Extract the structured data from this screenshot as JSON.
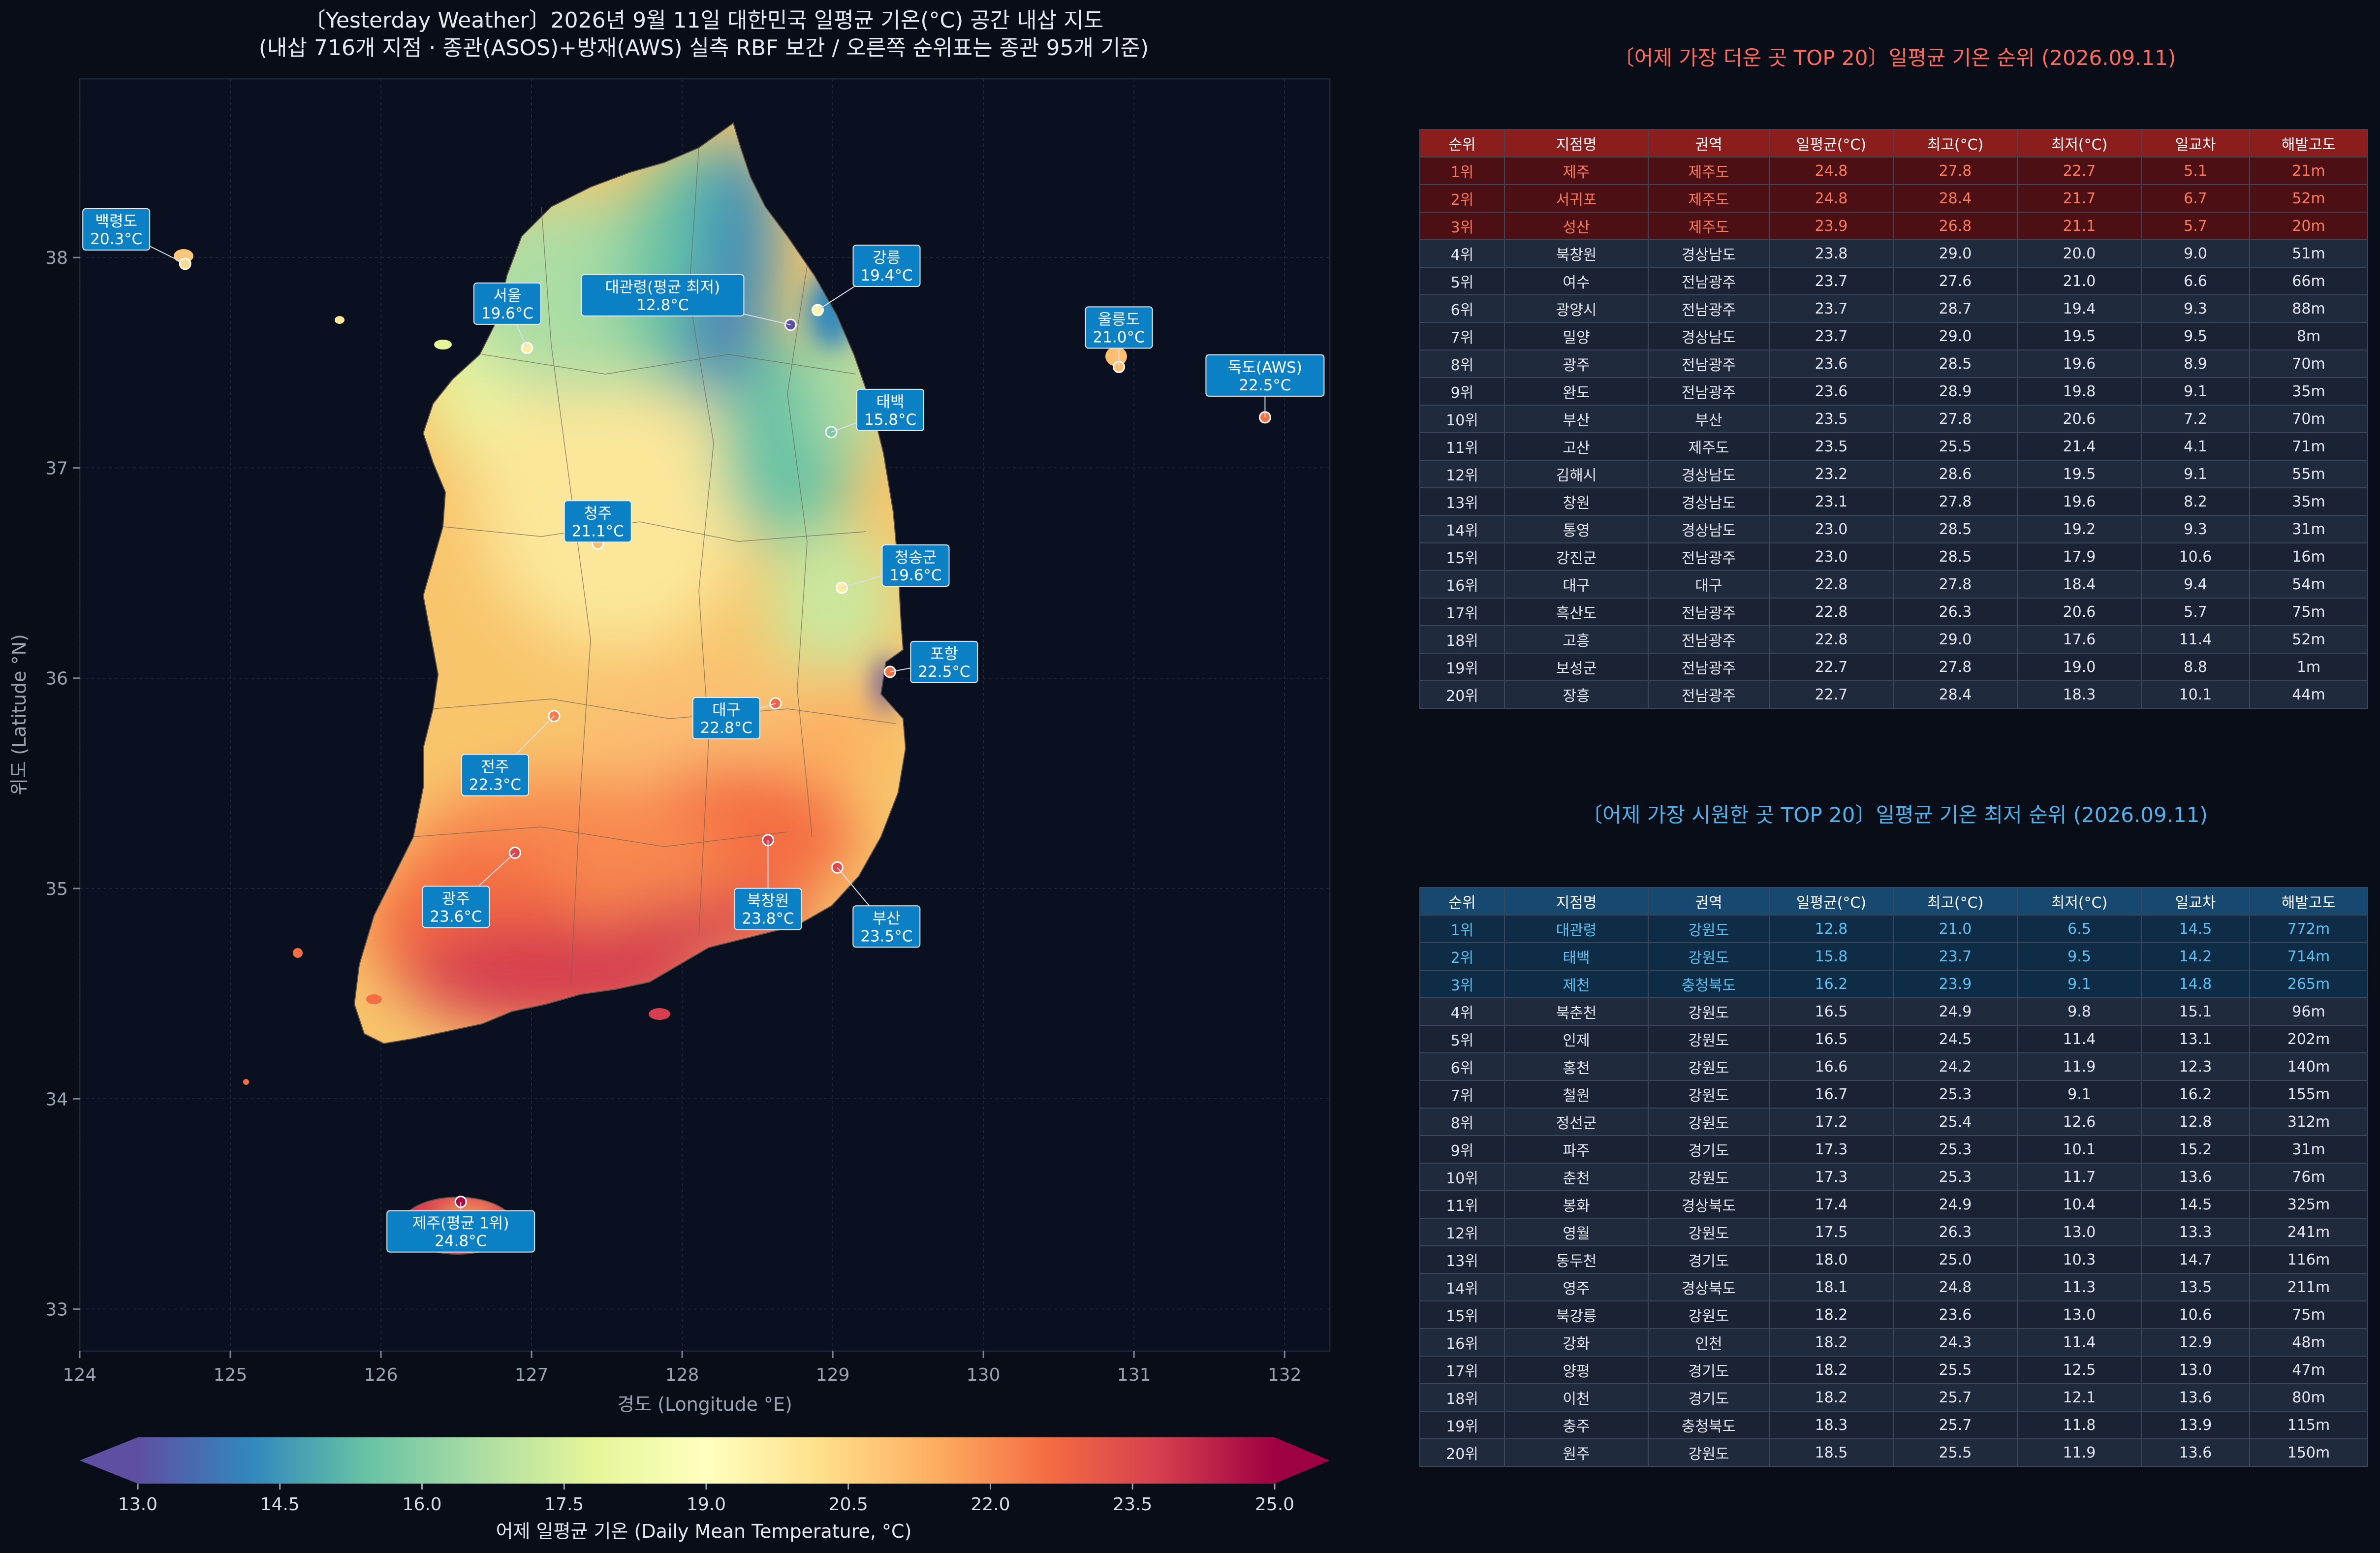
{
  "title_line1": "〔Yesterday Weather〕2026년 9월 11일 대한민국 일평균 기온(°C) 공간 내삽 지도",
  "title_line2": "(내삽 716개 지점 · 종관(ASOS)+방재(AWS) 실측 RBF 보간 / 오른쪽 순위표는 종관 95개 기준)",
  "chart_data": {
    "type": "heatmap",
    "map_kind": "interpolated temperature choropleth of South Korea",
    "xlabel": "경도 (Longitude °E)",
    "ylabel": "위도 (Latitude °N)",
    "xlim": [
      124,
      132.3
    ],
    "ylim": [
      32.8,
      38.85
    ],
    "x_ticks": [
      124,
      125,
      126,
      127,
      128,
      129,
      130,
      131,
      132
    ],
    "y_ticks": [
      33,
      34,
      35,
      36,
      37,
      38
    ],
    "grid": true,
    "colorbar": {
      "label": "어제 일평균 기온 (Daily Mean Temperature, °C)",
      "min": 13.0,
      "max": 25.0,
      "ticks": [
        13.0,
        14.5,
        16.0,
        17.5,
        19.0,
        20.5,
        22.0,
        23.5,
        25.0
      ],
      "extend": "both",
      "colormap": "Spectral_r",
      "stops": [
        "#5e4fa2",
        "#3288bd",
        "#66c2a5",
        "#abdda4",
        "#e6f598",
        "#ffffbf",
        "#fee08b",
        "#fdae61",
        "#f46d43",
        "#d53e4f",
        "#9e0142"
      ]
    },
    "labels": [
      {
        "name": "백령도",
        "temp": "20.3°C",
        "lon": 124.7,
        "lat": 37.97,
        "value": 20.3
      },
      {
        "name": "서울",
        "temp": "19.6°C",
        "lon": 126.97,
        "lat": 37.57,
        "value": 19.6
      },
      {
        "name": "대관령(평균 최저)",
        "temp": "12.8°C",
        "lon": 128.72,
        "lat": 37.68,
        "value": 12.8
      },
      {
        "name": "강릉",
        "temp": "19.4°C",
        "lon": 128.9,
        "lat": 37.75,
        "value": 19.4
      },
      {
        "name": "울릉도",
        "temp": "21.0°C",
        "lon": 130.9,
        "lat": 37.48,
        "value": 21.0
      },
      {
        "name": "독도(AWS)",
        "temp": "22.5°C",
        "lon": 131.87,
        "lat": 37.24,
        "value": 22.5
      },
      {
        "name": "태백",
        "temp": "15.8°C",
        "lon": 128.99,
        "lat": 37.17,
        "value": 15.8
      },
      {
        "name": "청주",
        "temp": "21.1°C",
        "lon": 127.44,
        "lat": 36.64,
        "value": 21.1
      },
      {
        "name": "청송군",
        "temp": "19.6°C",
        "lon": 129.06,
        "lat": 36.43,
        "value": 19.6
      },
      {
        "name": "포항",
        "temp": "22.5°C",
        "lon": 129.38,
        "lat": 36.03,
        "value": 22.5
      },
      {
        "name": "대구",
        "temp": "22.8°C",
        "lon": 128.62,
        "lat": 35.88,
        "value": 22.8
      },
      {
        "name": "전주",
        "temp": "22.3°C",
        "lon": 127.15,
        "lat": 35.82,
        "value": 22.3
      },
      {
        "name": "광주",
        "temp": "23.6°C",
        "lon": 126.89,
        "lat": 35.17,
        "value": 23.6
      },
      {
        "name": "북창원",
        "temp": "23.8°C",
        "lon": 128.57,
        "lat": 35.23,
        "value": 23.8
      },
      {
        "name": "부산",
        "temp": "23.5°C",
        "lon": 129.03,
        "lat": 35.1,
        "value": 23.5
      },
      {
        "name": "제주(평균 1위)",
        "temp": "24.8°C",
        "lon": 126.53,
        "lat": 33.51,
        "value": 24.8
      }
    ]
  },
  "hot": {
    "title": "〔어제 가장 더운 곳 TOP 20〕일평균 기온 순위 (2026.09.11)",
    "columns": [
      "순위",
      "지점명",
      "권역",
      "일평균(°C)",
      "최고(°C)",
      "최저(°C)",
      "일교차",
      "해발고도"
    ],
    "rows": [
      [
        "1위",
        "제주",
        "제주도",
        "24.8",
        "27.8",
        "22.7",
        "5.1",
        "21m"
      ],
      [
        "2위",
        "서귀포",
        "제주도",
        "24.8",
        "28.4",
        "21.7",
        "6.7",
        "52m"
      ],
      [
        "3위",
        "성산",
        "제주도",
        "23.9",
        "26.8",
        "21.1",
        "5.7",
        "20m"
      ],
      [
        "4위",
        "북창원",
        "경상남도",
        "23.8",
        "29.0",
        "20.0",
        "9.0",
        "51m"
      ],
      [
        "5위",
        "여수",
        "전남광주",
        "23.7",
        "27.6",
        "21.0",
        "6.6",
        "66m"
      ],
      [
        "6위",
        "광양시",
        "전남광주",
        "23.7",
        "28.7",
        "19.4",
        "9.3",
        "88m"
      ],
      [
        "7위",
        "밀양",
        "경상남도",
        "23.7",
        "29.0",
        "19.5",
        "9.5",
        "8m"
      ],
      [
        "8위",
        "광주",
        "전남광주",
        "23.6",
        "28.5",
        "19.6",
        "8.9",
        "70m"
      ],
      [
        "9위",
        "완도",
        "전남광주",
        "23.6",
        "28.9",
        "19.8",
        "9.1",
        "35m"
      ],
      [
        "10위",
        "부산",
        "부산",
        "23.5",
        "27.8",
        "20.6",
        "7.2",
        "70m"
      ],
      [
        "11위",
        "고산",
        "제주도",
        "23.5",
        "25.5",
        "21.4",
        "4.1",
        "71m"
      ],
      [
        "12위",
        "김해시",
        "경상남도",
        "23.2",
        "28.6",
        "19.5",
        "9.1",
        "55m"
      ],
      [
        "13위",
        "창원",
        "경상남도",
        "23.1",
        "27.8",
        "19.6",
        "8.2",
        "35m"
      ],
      [
        "14위",
        "통영",
        "경상남도",
        "23.0",
        "28.5",
        "19.2",
        "9.3",
        "31m"
      ],
      [
        "15위",
        "강진군",
        "전남광주",
        "23.0",
        "28.5",
        "17.9",
        "10.6",
        "16m"
      ],
      [
        "16위",
        "대구",
        "대구",
        "22.8",
        "27.8",
        "18.4",
        "9.4",
        "54m"
      ],
      [
        "17위",
        "흑산도",
        "전남광주",
        "22.8",
        "26.3",
        "20.6",
        "5.7",
        "75m"
      ],
      [
        "18위",
        "고흥",
        "전남광주",
        "22.8",
        "29.0",
        "17.6",
        "11.4",
        "52m"
      ],
      [
        "19위",
        "보성군",
        "전남광주",
        "22.7",
        "27.8",
        "19.0",
        "8.8",
        "1m"
      ],
      [
        "20위",
        "장흥",
        "전남광주",
        "22.7",
        "28.4",
        "18.3",
        "10.1",
        "44m"
      ]
    ]
  },
  "cool": {
    "title": "〔어제 가장 시원한 곳 TOP 20〕일평균 기온 최저 순위 (2026.09.11)",
    "columns": [
      "순위",
      "지점명",
      "권역",
      "일평균(°C)",
      "최고(°C)",
      "최저(°C)",
      "일교차",
      "해발고도"
    ],
    "rows": [
      [
        "1위",
        "대관령",
        "강원도",
        "12.8",
        "21.0",
        "6.5",
        "14.5",
        "772m"
      ],
      [
        "2위",
        "태백",
        "강원도",
        "15.8",
        "23.7",
        "9.5",
        "14.2",
        "714m"
      ],
      [
        "3위",
        "제천",
        "충청북도",
        "16.2",
        "23.9",
        "9.1",
        "14.8",
        "265m"
      ],
      [
        "4위",
        "북춘천",
        "강원도",
        "16.5",
        "24.9",
        "9.8",
        "15.1",
        "96m"
      ],
      [
        "5위",
        "인제",
        "강원도",
        "16.5",
        "24.5",
        "11.4",
        "13.1",
        "202m"
      ],
      [
        "6위",
        "홍천",
        "강원도",
        "16.6",
        "24.2",
        "11.9",
        "12.3",
        "140m"
      ],
      [
        "7위",
        "철원",
        "강원도",
        "16.7",
        "25.3",
        "9.1",
        "16.2",
        "155m"
      ],
      [
        "8위",
        "정선군",
        "강원도",
        "17.2",
        "25.4",
        "12.6",
        "12.8",
        "312m"
      ],
      [
        "9위",
        "파주",
        "경기도",
        "17.3",
        "25.3",
        "10.1",
        "15.2",
        "31m"
      ],
      [
        "10위",
        "춘천",
        "강원도",
        "17.3",
        "25.3",
        "11.7",
        "13.6",
        "76m"
      ],
      [
        "11위",
        "봉화",
        "경상북도",
        "17.4",
        "24.9",
        "10.4",
        "14.5",
        "325m"
      ],
      [
        "12위",
        "영월",
        "강원도",
        "17.5",
        "26.3",
        "13.0",
        "13.3",
        "241m"
      ],
      [
        "13위",
        "동두천",
        "경기도",
        "18.0",
        "25.0",
        "10.3",
        "14.7",
        "116m"
      ],
      [
        "14위",
        "영주",
        "경상북도",
        "18.1",
        "24.8",
        "11.3",
        "13.5",
        "211m"
      ],
      [
        "15위",
        "북강릉",
        "강원도",
        "18.2",
        "23.6",
        "13.0",
        "10.6",
        "75m"
      ],
      [
        "16위",
        "강화",
        "인천",
        "18.2",
        "24.3",
        "11.4",
        "12.9",
        "48m"
      ],
      [
        "17위",
        "양평",
        "경기도",
        "18.2",
        "25.5",
        "12.5",
        "13.0",
        "47m"
      ],
      [
        "18위",
        "이천",
        "경기도",
        "18.2",
        "25.7",
        "12.1",
        "13.6",
        "80m"
      ],
      [
        "19위",
        "충주",
        "충청북도",
        "18.3",
        "25.7",
        "11.8",
        "13.9",
        "115m"
      ],
      [
        "20위",
        "원주",
        "강원도",
        "18.5",
        "25.5",
        "11.9",
        "13.6",
        "150m"
      ]
    ]
  }
}
